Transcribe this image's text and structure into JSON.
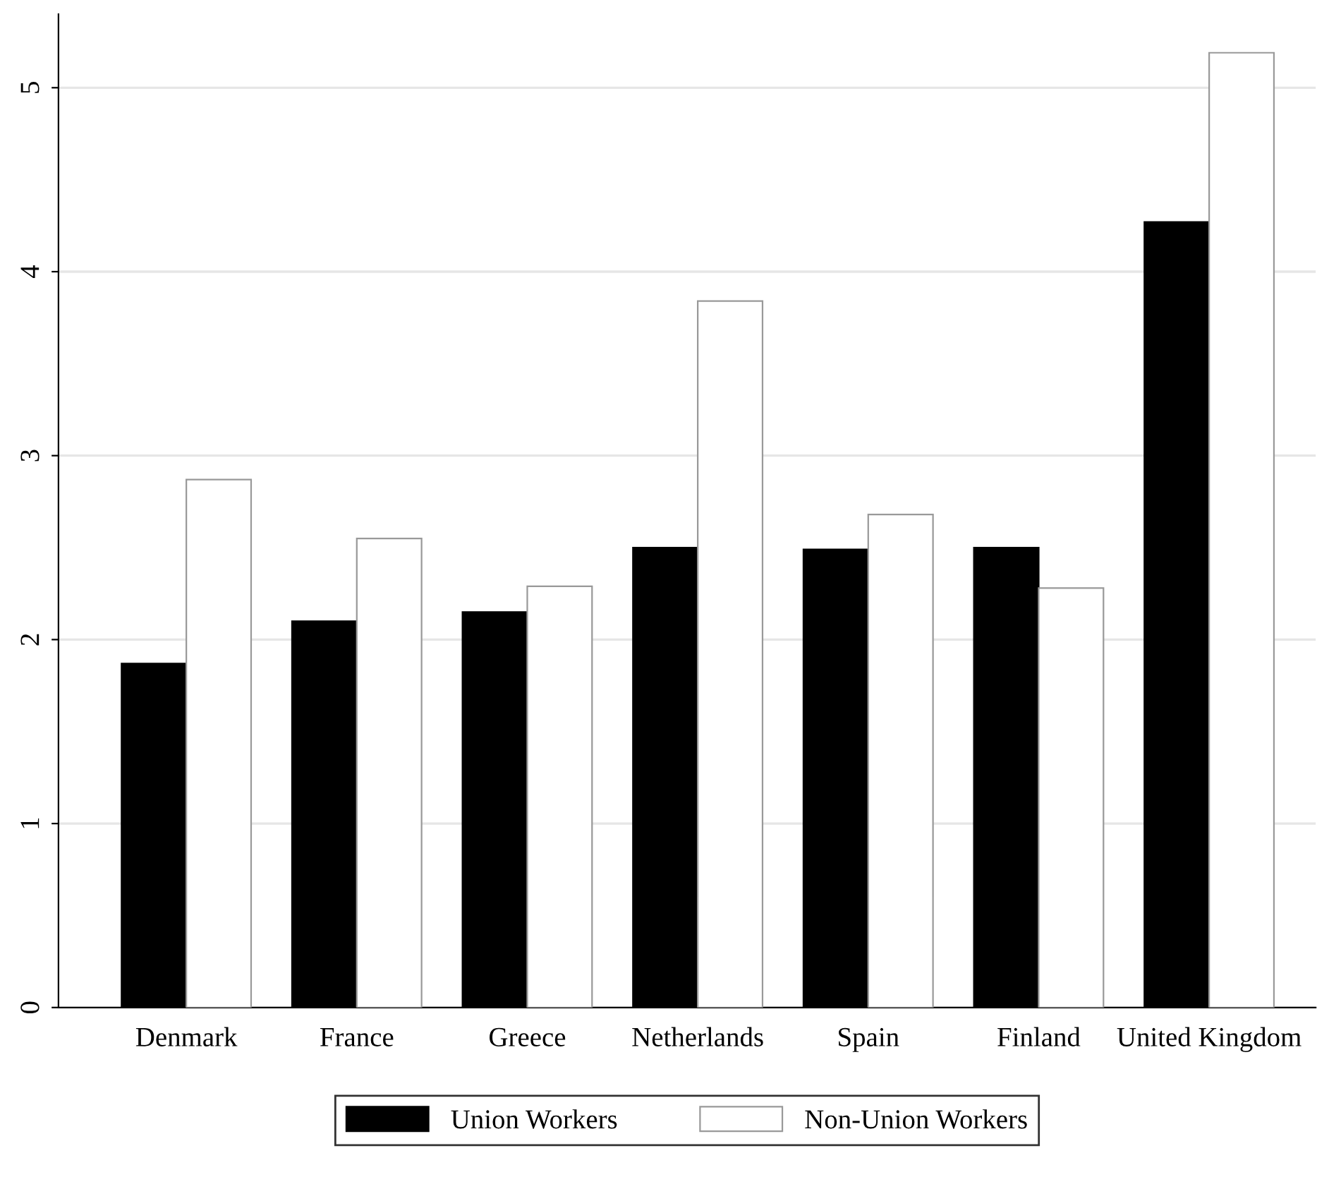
{
  "chart_data": {
    "type": "bar",
    "categories": [
      "Denmark",
      "France",
      "Greece",
      "Netherlands",
      "Spain",
      "Finland",
      "United Kingdom"
    ],
    "series": [
      {
        "name": "Union Workers",
        "color": "#000000",
        "values": [
          1.87,
          2.1,
          2.15,
          2.5,
          2.49,
          2.5,
          4.27
        ]
      },
      {
        "name": "Non-Union Workers",
        "color": "#ffffff",
        "values": [
          2.87,
          2.55,
          2.29,
          3.84,
          2.68,
          2.28,
          5.19
        ]
      }
    ],
    "ylim": [
      0,
      5.4
    ],
    "yticks": [
      0,
      1,
      2,
      3,
      4,
      5
    ],
    "grid": "y",
    "legend": "bottom"
  }
}
